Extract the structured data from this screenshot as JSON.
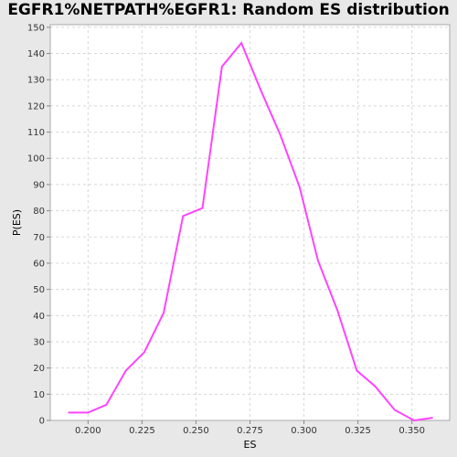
{
  "chart_data": {
    "type": "line",
    "title": "EGFR1%NETPATH%EGFR1: Random ES distribution",
    "xlabel": "ES",
    "ylabel": "P(ES)",
    "xlim": [
      0.1825,
      0.3675
    ],
    "ylim": [
      0,
      151
    ],
    "x_ticks": [
      0.2,
      0.225,
      0.25,
      0.275,
      0.3,
      0.325,
      0.35
    ],
    "x_tick_labels": [
      "0.200",
      "0.225",
      "0.250",
      "0.275",
      "0.300",
      "0.325",
      "0.350"
    ],
    "y_ticks": [
      0,
      10,
      20,
      30,
      40,
      50,
      60,
      70,
      80,
      90,
      100,
      110,
      120,
      130,
      140,
      150
    ],
    "y_tick_labels": [
      "0",
      "10",
      "20",
      "30",
      "40",
      "50",
      "60",
      "70",
      "80",
      "90",
      "100",
      "110",
      "120",
      "130",
      "140",
      "150"
    ],
    "grid": true,
    "legend": "none",
    "line_color": "#ff44ff",
    "background_color": "#ffffff",
    "series": [
      {
        "x": [
          0.191,
          0.2,
          0.2085,
          0.2175,
          0.226,
          0.235,
          0.244,
          0.253,
          0.262,
          0.271,
          0.28,
          0.289,
          0.298,
          0.3065,
          0.3155,
          0.3245,
          0.333,
          0.342,
          0.351,
          0.3595
        ],
        "values": [
          3,
          3,
          6,
          19,
          26,
          41,
          78,
          81,
          135,
          144,
          126,
          109,
          89,
          61,
          42,
          19,
          13,
          4,
          0,
          1
        ]
      }
    ]
  }
}
